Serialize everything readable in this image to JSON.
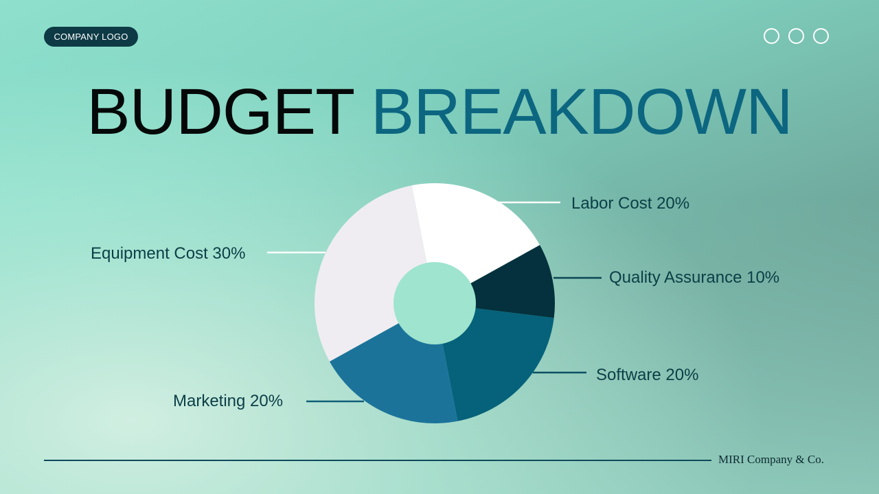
{
  "header": {
    "logo_label": "COMPANY LOGO",
    "nav_dots": 3
  },
  "title": {
    "part1": "BUDGET",
    "part2": "BREAKDOWN",
    "part1_color": "#050808",
    "part2_color": "#0c6680"
  },
  "labels": {
    "labor": "Labor Cost 20%",
    "qa": "Quality Assurance 10%",
    "software": "Software 20%",
    "marketing": "Marketing 20%",
    "equipment": "Equipment Cost 30%"
  },
  "footer": {
    "company": "MIRI Company & Co."
  },
  "chart_data": {
    "type": "pie",
    "variant": "donut",
    "title": "BUDGET BREAKDOWN",
    "categories": [
      "Labor Cost",
      "Quality Assurance",
      "Software",
      "Marketing",
      "Equipment Cost"
    ],
    "values": [
      20,
      10,
      20,
      20,
      30
    ],
    "unit": "%",
    "colors": [
      "#ffffff",
      "#04313d",
      "#05627a",
      "#1c739a",
      "#efedf1"
    ],
    "legend": "callout labels with leader lines"
  }
}
